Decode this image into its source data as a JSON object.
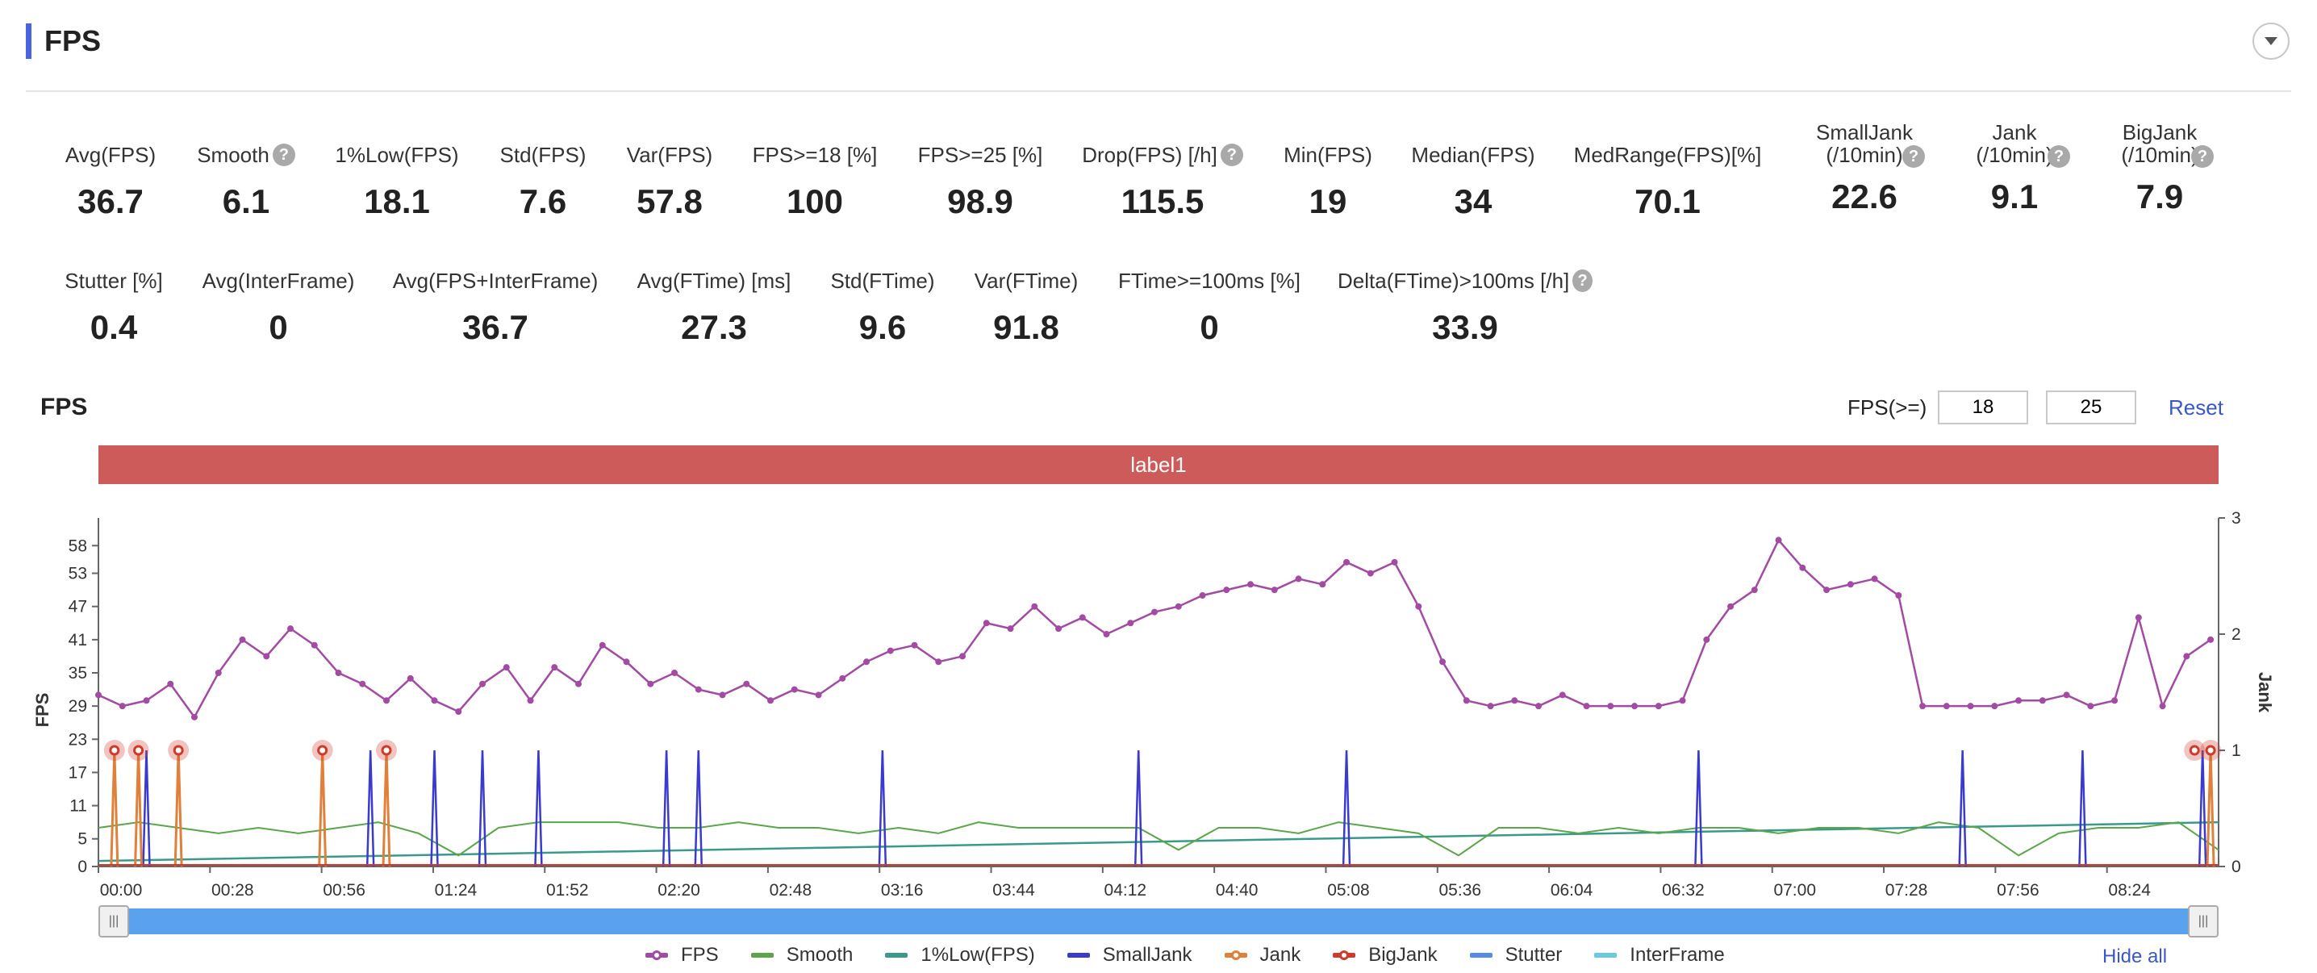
{
  "header": {
    "title": "FPS"
  },
  "metrics_row1": [
    {
      "label": "Avg(FPS)",
      "value": "36.7",
      "help": false
    },
    {
      "label": "Smooth",
      "value": "6.1",
      "help": true
    },
    {
      "label": "1%Low(FPS)",
      "value": "18.1",
      "help": false
    },
    {
      "label": "Std(FPS)",
      "value": "7.6",
      "help": false
    },
    {
      "label": "Var(FPS)",
      "value": "57.8",
      "help": false
    },
    {
      "label": "FPS>=18 [%]",
      "value": "100",
      "help": false
    },
    {
      "label": "FPS>=25 [%]",
      "value": "98.9",
      "help": false
    },
    {
      "label": "Drop(FPS) [/h]",
      "value": "115.5",
      "help": true
    },
    {
      "label": "Min(FPS)",
      "value": "19",
      "help": false
    },
    {
      "label": "Median(FPS)",
      "value": "34",
      "help": false
    },
    {
      "label": "MedRange(FPS)[%]",
      "value": "70.1",
      "help": false
    },
    {
      "label": "SmallJank (/10min)",
      "value": "22.6",
      "help": true
    },
    {
      "label": "Jank (/10min)",
      "value": "9.1",
      "help": true
    },
    {
      "label": "BigJank (/10min)",
      "value": "7.9",
      "help": true
    }
  ],
  "metrics_row2": [
    {
      "label": "Stutter [%]",
      "value": "0.4",
      "help": false
    },
    {
      "label": "Avg(InterFrame)",
      "value": "0",
      "help": false
    },
    {
      "label": "Avg(FPS+InterFrame)",
      "value": "36.7",
      "help": false
    },
    {
      "label": "Avg(FTime) [ms]",
      "value": "27.3",
      "help": false
    },
    {
      "label": "Std(FTime)",
      "value": "9.6",
      "help": false
    },
    {
      "label": "Var(FTime)",
      "value": "91.8",
      "help": false
    },
    {
      "label": "FTime>=100ms [%]",
      "value": "0",
      "help": false
    },
    {
      "label": "Delta(FTime)>100ms [/h]",
      "value": "33.9",
      "help": true
    }
  ],
  "chart_panel": {
    "title": "FPS",
    "threshold_label": "FPS(>=)",
    "threshold_1": "18",
    "threshold_2": "25",
    "reset_label": "Reset",
    "label_band": "label1",
    "hide_all_label": "Hide all"
  },
  "colors": {
    "fps": "#a34aa3",
    "smooth": "#5aa64a",
    "low1": "#3a9a8a",
    "smalljank": "#3a3ad0",
    "jank": "#e0803a",
    "bigjank": "#d03a2a",
    "stutter": "#5a8ae8",
    "interframe": "#6ac8e0",
    "band": "#cd5b5a",
    "accent": "#4a63e0"
  },
  "chart_data": {
    "type": "line",
    "xlabel": "",
    "ylabel": "FPS",
    "y2label": "Jank",
    "y_ticks": [
      0,
      5,
      11,
      17,
      23,
      29,
      35,
      41,
      47,
      53,
      58
    ],
    "y2_ticks": [
      0,
      1,
      2,
      3
    ],
    "ylim": [
      0,
      63
    ],
    "y2lim": [
      0,
      3
    ],
    "x_ticks": [
      "00:00",
      "00:28",
      "00:56",
      "01:24",
      "01:52",
      "02:20",
      "02:48",
      "03:16",
      "03:44",
      "04:12",
      "04:40",
      "05:08",
      "05:36",
      "06:04",
      "06:32",
      "07:00",
      "07:28",
      "07:56",
      "08:24"
    ],
    "xlim_seconds": [
      0,
      530
    ],
    "legend": [
      "FPS",
      "Smooth",
      "1%Low(FPS)",
      "SmallJank",
      "Jank",
      "BigJank",
      "Stutter",
      "InterFrame"
    ],
    "fps_series": [
      [
        0,
        31
      ],
      [
        6,
        29
      ],
      [
        12,
        30
      ],
      [
        18,
        33
      ],
      [
        24,
        27
      ],
      [
        30,
        35
      ],
      [
        36,
        41
      ],
      [
        42,
        38
      ],
      [
        48,
        43
      ],
      [
        54,
        40
      ],
      [
        60,
        35
      ],
      [
        66,
        33
      ],
      [
        72,
        30
      ],
      [
        78,
        34
      ],
      [
        84,
        30
      ],
      [
        90,
        28
      ],
      [
        96,
        33
      ],
      [
        102,
        36
      ],
      [
        108,
        30
      ],
      [
        114,
        36
      ],
      [
        120,
        33
      ],
      [
        126,
        40
      ],
      [
        132,
        37
      ],
      [
        138,
        33
      ],
      [
        144,
        35
      ],
      [
        150,
        32
      ],
      [
        156,
        31
      ],
      [
        162,
        33
      ],
      [
        168,
        30
      ],
      [
        174,
        32
      ],
      [
        180,
        31
      ],
      [
        186,
        34
      ],
      [
        192,
        37
      ],
      [
        198,
        39
      ],
      [
        204,
        40
      ],
      [
        210,
        37
      ],
      [
        216,
        38
      ],
      [
        222,
        44
      ],
      [
        228,
        43
      ],
      [
        234,
        47
      ],
      [
        240,
        43
      ],
      [
        246,
        45
      ],
      [
        252,
        42
      ],
      [
        258,
        44
      ],
      [
        264,
        46
      ],
      [
        270,
        47
      ],
      [
        276,
        49
      ],
      [
        282,
        50
      ],
      [
        288,
        51
      ],
      [
        294,
        50
      ],
      [
        300,
        52
      ],
      [
        306,
        51
      ],
      [
        312,
        55
      ],
      [
        318,
        53
      ],
      [
        324,
        55
      ],
      [
        330,
        47
      ],
      [
        336,
        37
      ],
      [
        342,
        30
      ],
      [
        348,
        29
      ],
      [
        354,
        30
      ],
      [
        360,
        29
      ],
      [
        366,
        31
      ],
      [
        372,
        29
      ],
      [
        378,
        29
      ],
      [
        384,
        29
      ],
      [
        390,
        29
      ],
      [
        396,
        30
      ],
      [
        402,
        41
      ],
      [
        408,
        47
      ],
      [
        414,
        50
      ],
      [
        420,
        59
      ],
      [
        426,
        54
      ],
      [
        432,
        50
      ],
      [
        438,
        51
      ],
      [
        444,
        52
      ],
      [
        450,
        49
      ],
      [
        456,
        29
      ],
      [
        462,
        29
      ],
      [
        468,
        29
      ],
      [
        474,
        29
      ],
      [
        480,
        30
      ],
      [
        486,
        30
      ],
      [
        492,
        31
      ],
      [
        498,
        29
      ],
      [
        504,
        30
      ],
      [
        510,
        45
      ],
      [
        516,
        29
      ],
      [
        522,
        38
      ],
      [
        528,
        41
      ]
    ],
    "smooth_series": [
      [
        0,
        7
      ],
      [
        10,
        8
      ],
      [
        20,
        7
      ],
      [
        30,
        6
      ],
      [
        40,
        7
      ],
      [
        50,
        6
      ],
      [
        60,
        7
      ],
      [
        70,
        8
      ],
      [
        80,
        6
      ],
      [
        90,
        2
      ],
      [
        100,
        7
      ],
      [
        110,
        8
      ],
      [
        120,
        8
      ],
      [
        130,
        8
      ],
      [
        140,
        7
      ],
      [
        150,
        7
      ],
      [
        160,
        8
      ],
      [
        170,
        7
      ],
      [
        180,
        7
      ],
      [
        190,
        6
      ],
      [
        200,
        7
      ],
      [
        210,
        6
      ],
      [
        220,
        8
      ],
      [
        230,
        7
      ],
      [
        240,
        7
      ],
      [
        250,
        7
      ],
      [
        260,
        7
      ],
      [
        270,
        3
      ],
      [
        280,
        7
      ],
      [
        290,
        7
      ],
      [
        300,
        6
      ],
      [
        310,
        8
      ],
      [
        320,
        7
      ],
      [
        330,
        6
      ],
      [
        340,
        2
      ],
      [
        350,
        7
      ],
      [
        360,
        7
      ],
      [
        370,
        6
      ],
      [
        380,
        7
      ],
      [
        390,
        6
      ],
      [
        400,
        7
      ],
      [
        410,
        7
      ],
      [
        420,
        6
      ],
      [
        430,
        7
      ],
      [
        440,
        7
      ],
      [
        450,
        6
      ],
      [
        460,
        8
      ],
      [
        470,
        7
      ],
      [
        480,
        2
      ],
      [
        490,
        6
      ],
      [
        500,
        7
      ],
      [
        510,
        7
      ],
      [
        520,
        8
      ],
      [
        530,
        3
      ]
    ],
    "low1_series": [
      [
        0,
        1
      ],
      [
        530,
        8
      ]
    ],
    "smalljank_spikes": [
      12,
      20,
      68,
      84,
      96,
      110,
      142,
      150,
      196,
      260,
      312,
      400,
      466,
      496,
      526
    ],
    "jank_spikes": [
      4,
      10,
      20,
      56,
      72,
      528
    ],
    "bigjank_points": [
      4,
      10,
      20,
      56,
      72,
      524,
      528
    ]
  }
}
